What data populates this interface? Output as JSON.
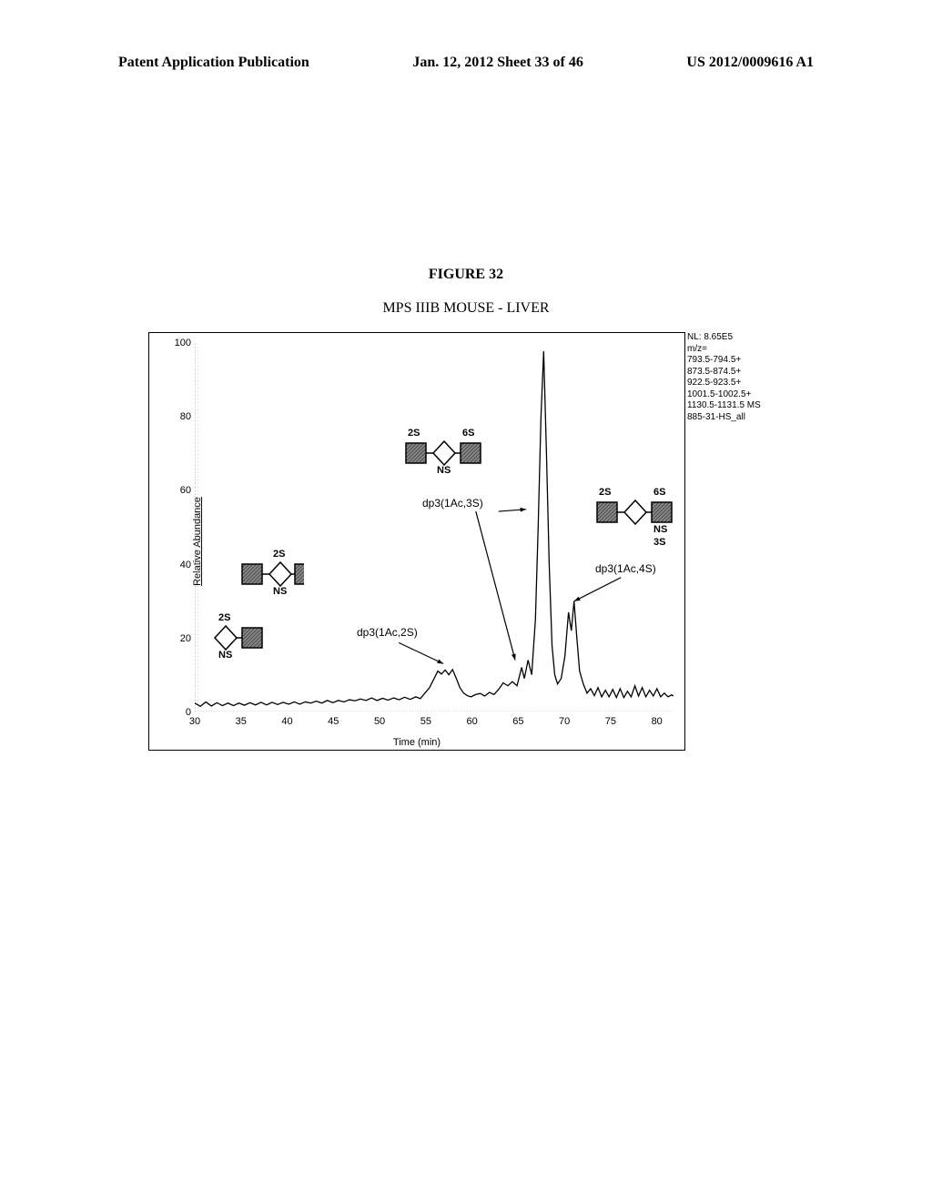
{
  "header": {
    "left": "Patent Application Publication",
    "center": "Jan. 12, 2012  Sheet 33 of 46",
    "right": "US 2012/0009616 A1"
  },
  "figure_label": "FIGURE 32",
  "subtitle": "MPS IIIB MOUSE - LIVER",
  "side_info": {
    "lines": [
      "NL: 8.65E5",
      "m/z=",
      "793.5-794.5+",
      "873.5-874.5+",
      "922.5-923.5+",
      "1001.5-1002.5+",
      "1130.5-1131.5  MS",
      "885-31-HS_all"
    ]
  },
  "chart": {
    "ylabel": "Relative Abundance",
    "xlabel": "Time (min)",
    "xlim": [
      30,
      82
    ],
    "ylim": [
      0,
      100
    ],
    "yticks": [
      0,
      20,
      40,
      60,
      80,
      100
    ],
    "xticks": [
      30,
      35,
      40,
      45,
      50,
      55,
      60,
      65,
      70,
      75,
      80
    ],
    "trace_color": "#000000",
    "background_color": "#ffffff",
    "grid_color": "#a0a0a0",
    "trace": [
      [
        30,
        2.3
      ],
      [
        30.6,
        1.4
      ],
      [
        31.2,
        2.6
      ],
      [
        31.8,
        1.5
      ],
      [
        32.4,
        2.4
      ],
      [
        33,
        1.6
      ],
      [
        33.6,
        2.3
      ],
      [
        34.2,
        1.6
      ],
      [
        34.8,
        2.3
      ],
      [
        35.4,
        1.7
      ],
      [
        36,
        2.4
      ],
      [
        36.6,
        1.8
      ],
      [
        37.2,
        2.5
      ],
      [
        37.8,
        1.8
      ],
      [
        38.4,
        2.5
      ],
      [
        39,
        1.9
      ],
      [
        39.6,
        2.5
      ],
      [
        40.2,
        2.0
      ],
      [
        40.8,
        2.6
      ],
      [
        41.4,
        2.0
      ],
      [
        42,
        2.6
      ],
      [
        42.6,
        2.3
      ],
      [
        43.2,
        2.8
      ],
      [
        43.8,
        2.3
      ],
      [
        44.4,
        3.0
      ],
      [
        45,
        2.4
      ],
      [
        45.6,
        3.0
      ],
      [
        46.2,
        2.6
      ],
      [
        46.8,
        3.2
      ],
      [
        47.4,
        2.9
      ],
      [
        48,
        3.4
      ],
      [
        48.6,
        3.0
      ],
      [
        49.2,
        3.7
      ],
      [
        49.8,
        3.0
      ],
      [
        50.4,
        3.6
      ],
      [
        51,
        3.1
      ],
      [
        51.6,
        3.7
      ],
      [
        52.2,
        3.2
      ],
      [
        52.8,
        3.9
      ],
      [
        53.4,
        3.3
      ],
      [
        54,
        4.0
      ],
      [
        54.5,
        3.5
      ],
      [
        55,
        5.0
      ],
      [
        55.5,
        6.5
      ],
      [
        56,
        9.0
      ],
      [
        56.4,
        11.0
      ],
      [
        56.8,
        10.2
      ],
      [
        57.2,
        11.3
      ],
      [
        57.6,
        10.0
      ],
      [
        58,
        11.4
      ],
      [
        58.4,
        9.0
      ],
      [
        58.8,
        6.5
      ],
      [
        59.2,
        5.0
      ],
      [
        59.6,
        4.3
      ],
      [
        60,
        4.0
      ],
      [
        60.5,
        4.6
      ],
      [
        61,
        4.9
      ],
      [
        61.5,
        4.2
      ],
      [
        62,
        5.2
      ],
      [
        62.5,
        4.6
      ],
      [
        63,
        6.0
      ],
      [
        63.5,
        7.8
      ],
      [
        64,
        7.0
      ],
      [
        64.5,
        8.1
      ],
      [
        65,
        7.0
      ],
      [
        65.5,
        12.0
      ],
      [
        65.8,
        9.0
      ],
      [
        66.2,
        14.0
      ],
      [
        66.6,
        10.0
      ],
      [
        67,
        25.0
      ],
      [
        67.3,
        50.0
      ],
      [
        67.6,
        80.0
      ],
      [
        67.9,
        98.0
      ],
      [
        68.2,
        70.0
      ],
      [
        68.5,
        40.0
      ],
      [
        68.8,
        18.0
      ],
      [
        69.1,
        10.0
      ],
      [
        69.4,
        7.5
      ],
      [
        69.8,
        9.0
      ],
      [
        70.2,
        15.0
      ],
      [
        70.6,
        27.0
      ],
      [
        70.9,
        22.0
      ],
      [
        71.2,
        30.0
      ],
      [
        71.5,
        20.0
      ],
      [
        71.8,
        11.0
      ],
      [
        72.2,
        7.5
      ],
      [
        72.6,
        5.0
      ],
      [
        73.0,
        6.2
      ],
      [
        73.4,
        4.3
      ],
      [
        73.8,
        6.5
      ],
      [
        74.2,
        4.0
      ],
      [
        74.6,
        5.8
      ],
      [
        75,
        4.0
      ],
      [
        75.4,
        6.0
      ],
      [
        75.8,
        3.8
      ],
      [
        76.2,
        6.2
      ],
      [
        76.6,
        3.8
      ],
      [
        77,
        5.5
      ],
      [
        77.4,
        4.0
      ],
      [
        77.8,
        7.0
      ],
      [
        78.2,
        4.2
      ],
      [
        78.6,
        6.5
      ],
      [
        79,
        4.0
      ],
      [
        79.4,
        5.8
      ],
      [
        79.8,
        4.2
      ],
      [
        80.2,
        6.2
      ],
      [
        80.6,
        4.0
      ],
      [
        81,
        5.0
      ],
      [
        81.4,
        4.0
      ],
      [
        81.8,
        4.5
      ],
      [
        82,
        4.2
      ]
    ]
  },
  "annotations": {
    "dp3_2s_label": "dp3(1Ac,2S)",
    "dp3_3s_label": "dp3(1Ac,3S)",
    "dp3_4s_label": "dp3(1Ac,4S)"
  },
  "glycans": {
    "labels": {
      "s2": "2S",
      "s6": "6S",
      "ns": "NS",
      "s3": "3S"
    },
    "colors": {
      "square_fill": "#6b6b6b",
      "square_hatch": "#3a3a3a",
      "diamond_stroke": "#000000",
      "diamond_fill": "#ffffff"
    }
  }
}
